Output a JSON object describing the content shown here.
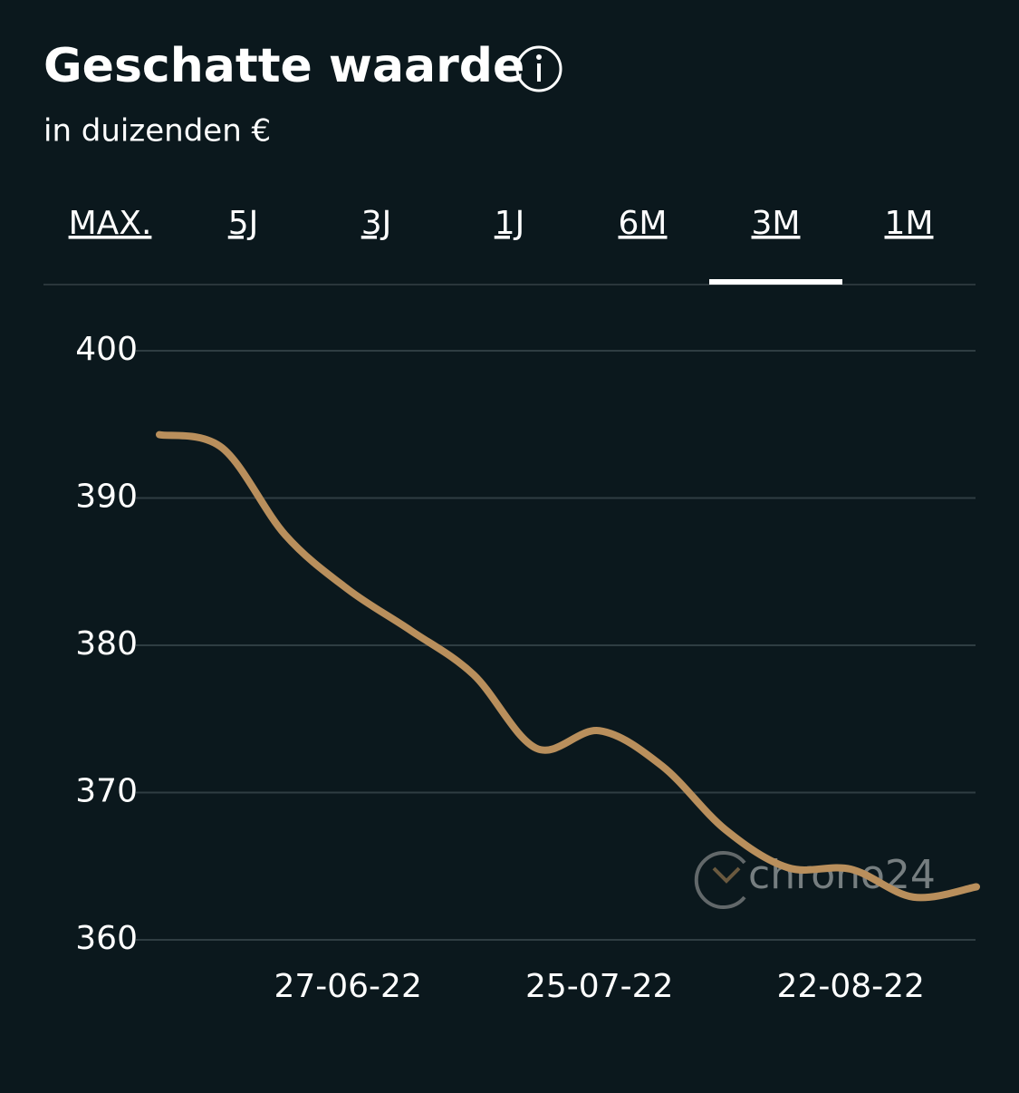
{
  "tabs": {
    "items": [
      "MAX.",
      "5J",
      "3J",
      "1J",
      "6M",
      "3M",
      "1M"
    ],
    "selected": 5
  },
  "watermark": "chrono24",
  "chart_data": {
    "type": "line",
    "title": "Geschatte waarde",
    "subtitle": "in duizenden €",
    "x": [
      "06-06-22",
      "13-06-22",
      "20-06-22",
      "27-06-22",
      "04-07-22",
      "11-07-22",
      "18-07-22",
      "25-07-22",
      "01-08-22",
      "08-08-22",
      "15-08-22",
      "22-08-22",
      "29-08-22",
      "05-09-22"
    ],
    "series": [
      {
        "name": "Geschatte waarde",
        "color": "#b98f5c",
        "values": [
          394.3,
          393.4,
          387.5,
          383.8,
          381.0,
          378.0,
          373.0,
          374.2,
          371.8,
          367.5,
          364.9,
          364.8,
          362.9,
          363.6
        ]
      }
    ],
    "xlim": [
      "06-06-22",
      "05-09-22"
    ],
    "xticks": [
      "27-06-22",
      "25-07-22",
      "22-08-22"
    ],
    "ylim": [
      360,
      400
    ],
    "yticks": [
      360,
      370,
      380,
      390,
      400
    ],
    "grid": true
  }
}
